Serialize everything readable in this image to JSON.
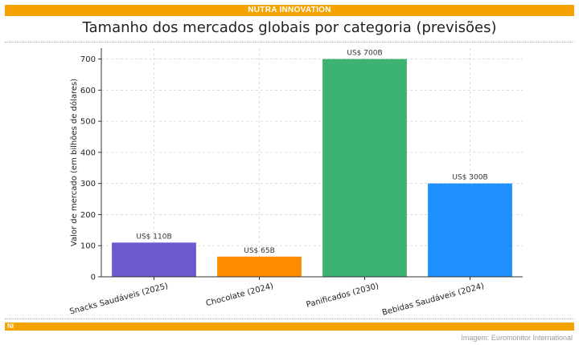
{
  "header": {
    "brand": "NUTRA INNOVATION"
  },
  "footer": {
    "brand_short": "NI",
    "source": "Imagem: Euromonitor International"
  },
  "colors": {
    "accent": "#f5a300",
    "bars": [
      "#6a5acd",
      "#ff8c00",
      "#3cb371",
      "#1e90ff"
    ]
  },
  "chart_data": {
    "type": "bar",
    "title": "Tamanho dos mercados globais por categoria (previsões)",
    "xlabel": "",
    "ylabel": "Valor de mercado (em bilhões de dólares)",
    "categories": [
      "Snacks Saudáveis (2025)",
      "Chocolate (2024)",
      "Panificados (2030)",
      "Bebidas Saudáveis (2024)"
    ],
    "values": [
      110,
      65,
      700,
      300
    ],
    "data_labels": [
      "US$ 110B",
      "US$ 65B",
      "US$ 700B",
      "US$ 300B"
    ],
    "ylim": [
      0,
      735
    ],
    "yticks": [
      0,
      100,
      200,
      300,
      400,
      500,
      600,
      700
    ],
    "grid": true
  }
}
